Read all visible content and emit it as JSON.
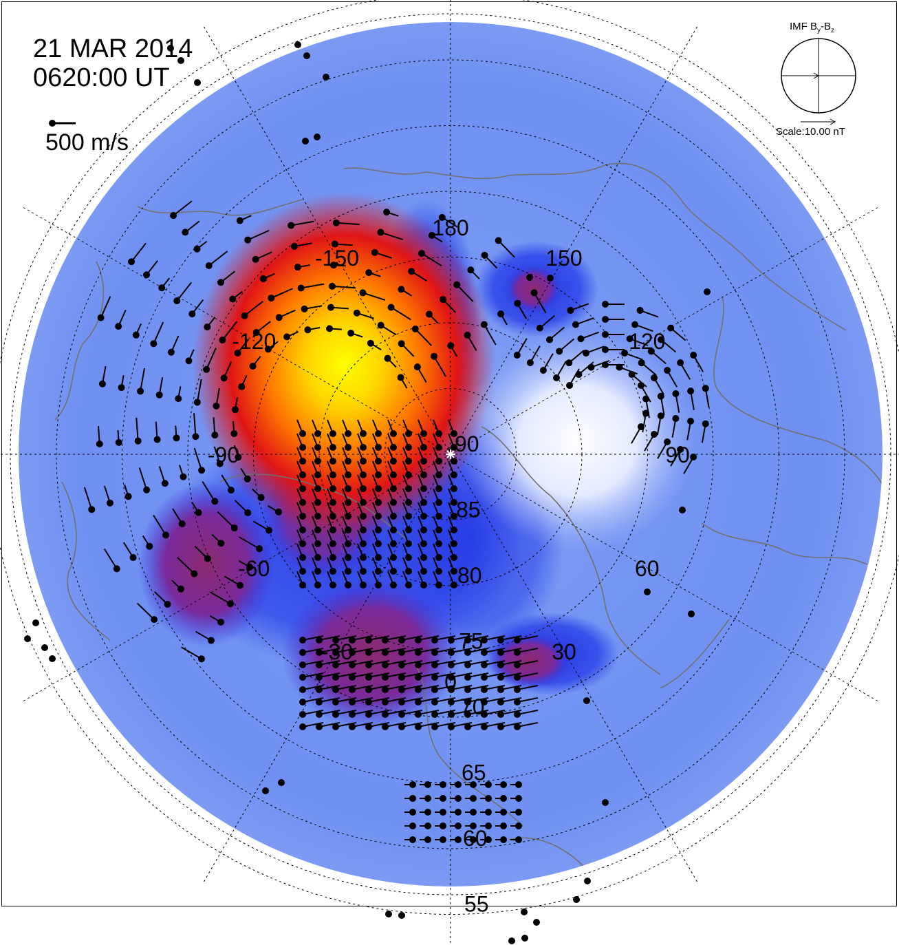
{
  "header": {
    "date": "21 MAR 2014",
    "time": "0620:00 UT"
  },
  "velocity_scale": {
    "label": "500 m/s",
    "value_ms": 500
  },
  "imf": {
    "title_main": "IMF B",
    "title_sub_y": "y",
    "title_dash": "-B",
    "title_sub_z": "z",
    "scale_label": "Scale:10.00 nT"
  },
  "map": {
    "projection": "polar, north magnetic pole centered",
    "latitude_labels": [
      "90",
      "85",
      "80",
      "75",
      "70",
      "65",
      "60",
      "55"
    ],
    "longitude_labels": [
      "180",
      "150",
      "120",
      "90",
      "60",
      "30",
      "0",
      "-30",
      "-60",
      "-90",
      "-120",
      "-150"
    ],
    "colors": {
      "background_blue": "#6b8ff0",
      "deep_blue": "#1a2fe0",
      "white": "#ffffff",
      "purple": "#8a2a78",
      "red": "#e81010",
      "orange": "#ff8c00",
      "yellow": "#ffff00",
      "coastline": "#707070"
    }
  }
}
